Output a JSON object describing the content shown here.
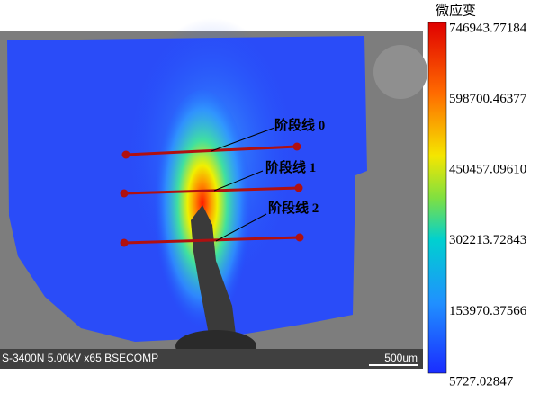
{
  "image": {
    "info_bar": {
      "left": "S-3400N 5.00kV x65 BSECOMP",
      "right": "500um"
    },
    "stage_lines": [
      "阶段线 0",
      "阶段线 1",
      "阶段线 2"
    ]
  },
  "colorbar": {
    "title": "微应变",
    "labels": [
      "746943.77184",
      "598700.46377",
      "450457.09610",
      "302213.72843",
      "153970.37566",
      "5727.02847"
    ]
  }
}
